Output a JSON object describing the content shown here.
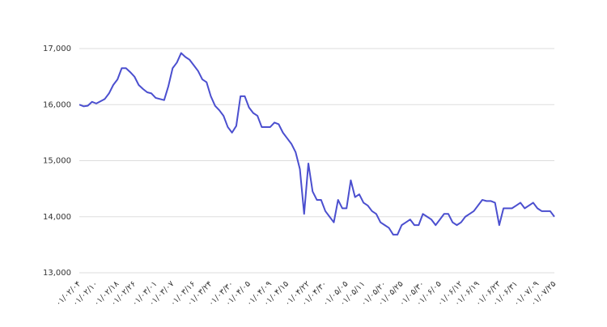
{
  "chart_data": {
    "type": "line",
    "categories": [
      "۰۱/۰۲/۰۴",
      null,
      null,
      null,
      "۰۱/۰۲/۱۰",
      null,
      null,
      null,
      null,
      "۰۱/۰۲/۱۸",
      null,
      null,
      null,
      "۰۱/۰۲/۲۶",
      null,
      null,
      null,
      null,
      "۰۱/۰۳/۰۱",
      null,
      null,
      null,
      "۰۱/۰۳/۰۷",
      null,
      null,
      null,
      null,
      "۰۱/۰۳/۱۶",
      null,
      null,
      null,
      "۰۱/۰۳/۲۴",
      null,
      null,
      null,
      null,
      "۰۱/۰۳/۳۰",
      null,
      null,
      null,
      "۰۱/۰۴/۰۵",
      null,
      null,
      null,
      null,
      "۰۱/۰۴/۰۹",
      null,
      null,
      null,
      "۰۱/۰۴/۱۵",
      null,
      null,
      null,
      null,
      "۰۱/۰۴/۲۲",
      null,
      null,
      null,
      "۰۱/۰۴/۳۰",
      null,
      null,
      null,
      null,
      "۰۱/۰۵/۰۵",
      null,
      null,
      null,
      "۰۱/۰۵/۱۱",
      null,
      null,
      null,
      null,
      "۰۱/۰۵/۲۰",
      null,
      null,
      null,
      "۰۱/۰۵/۲۵",
      null,
      null,
      null,
      null,
      "۰۱/۰۵/۳۰",
      null,
      null,
      null,
      "۰۱/۰۶/۰۵",
      null,
      null,
      null,
      null,
      "۰۱/۰۶/۱۲",
      null,
      null,
      null,
      "۰۱/۰۶/۱۹",
      null,
      null,
      null,
      null,
      "۰۱/۰۶/۲۳",
      null,
      null,
      null,
      "۰۱/۰۶/۳۱",
      null,
      null,
      null,
      null,
      "۰۱/۰۷/۰۹",
      null,
      null,
      null,
      "۰۱/۰۷/۲۵"
    ],
    "values": [
      16000,
      15970,
      15980,
      16050,
      16020,
      16060,
      16100,
      16200,
      16350,
      16450,
      16650,
      16650,
      16580,
      16500,
      16350,
      16280,
      16220,
      16200,
      16120,
      16100,
      16080,
      16330,
      16650,
      16750,
      16920,
      16850,
      16800,
      16700,
      16600,
      16450,
      16400,
      16150,
      15980,
      15900,
      15800,
      15600,
      15500,
      15620,
      16150,
      16150,
      15950,
      15850,
      15800,
      15600,
      15600,
      15600,
      15680,
      15650,
      15500,
      15400,
      15300,
      15150,
      14850,
      14050,
      14950,
      14450,
      14300,
      14300,
      14100,
      14000,
      13900,
      14300,
      14150,
      14150,
      14650,
      14350,
      14400,
      14250,
      14200,
      14100,
      14050,
      13900,
      13850,
      13800,
      13680,
      13680,
      13850,
      13900,
      13950,
      13850,
      13850,
      14050,
      14000,
      13950,
      13850,
      13950,
      14050,
      14050,
      13900,
      13850,
      13900,
      14000,
      14050,
      14100,
      14200,
      14300,
      14280,
      14280,
      14250,
      13850,
      14150,
      14150,
      14150,
      14200,
      14250,
      14150,
      14200,
      14250,
      14150,
      14100,
      14100,
      14100,
      14000
    ],
    "color": "#4b4fcf",
    "ylim": [
      13000,
      17000
    ],
    "yticks": [
      {
        "value": 13000,
        "label": "13,000"
      },
      {
        "value": 14000,
        "label": "14,000"
      },
      {
        "value": 15000,
        "label": "15,000"
      },
      {
        "value": 16000,
        "label": "16,000"
      },
      {
        "value": 17000,
        "label": "17,000"
      }
    ],
    "grid": true
  }
}
